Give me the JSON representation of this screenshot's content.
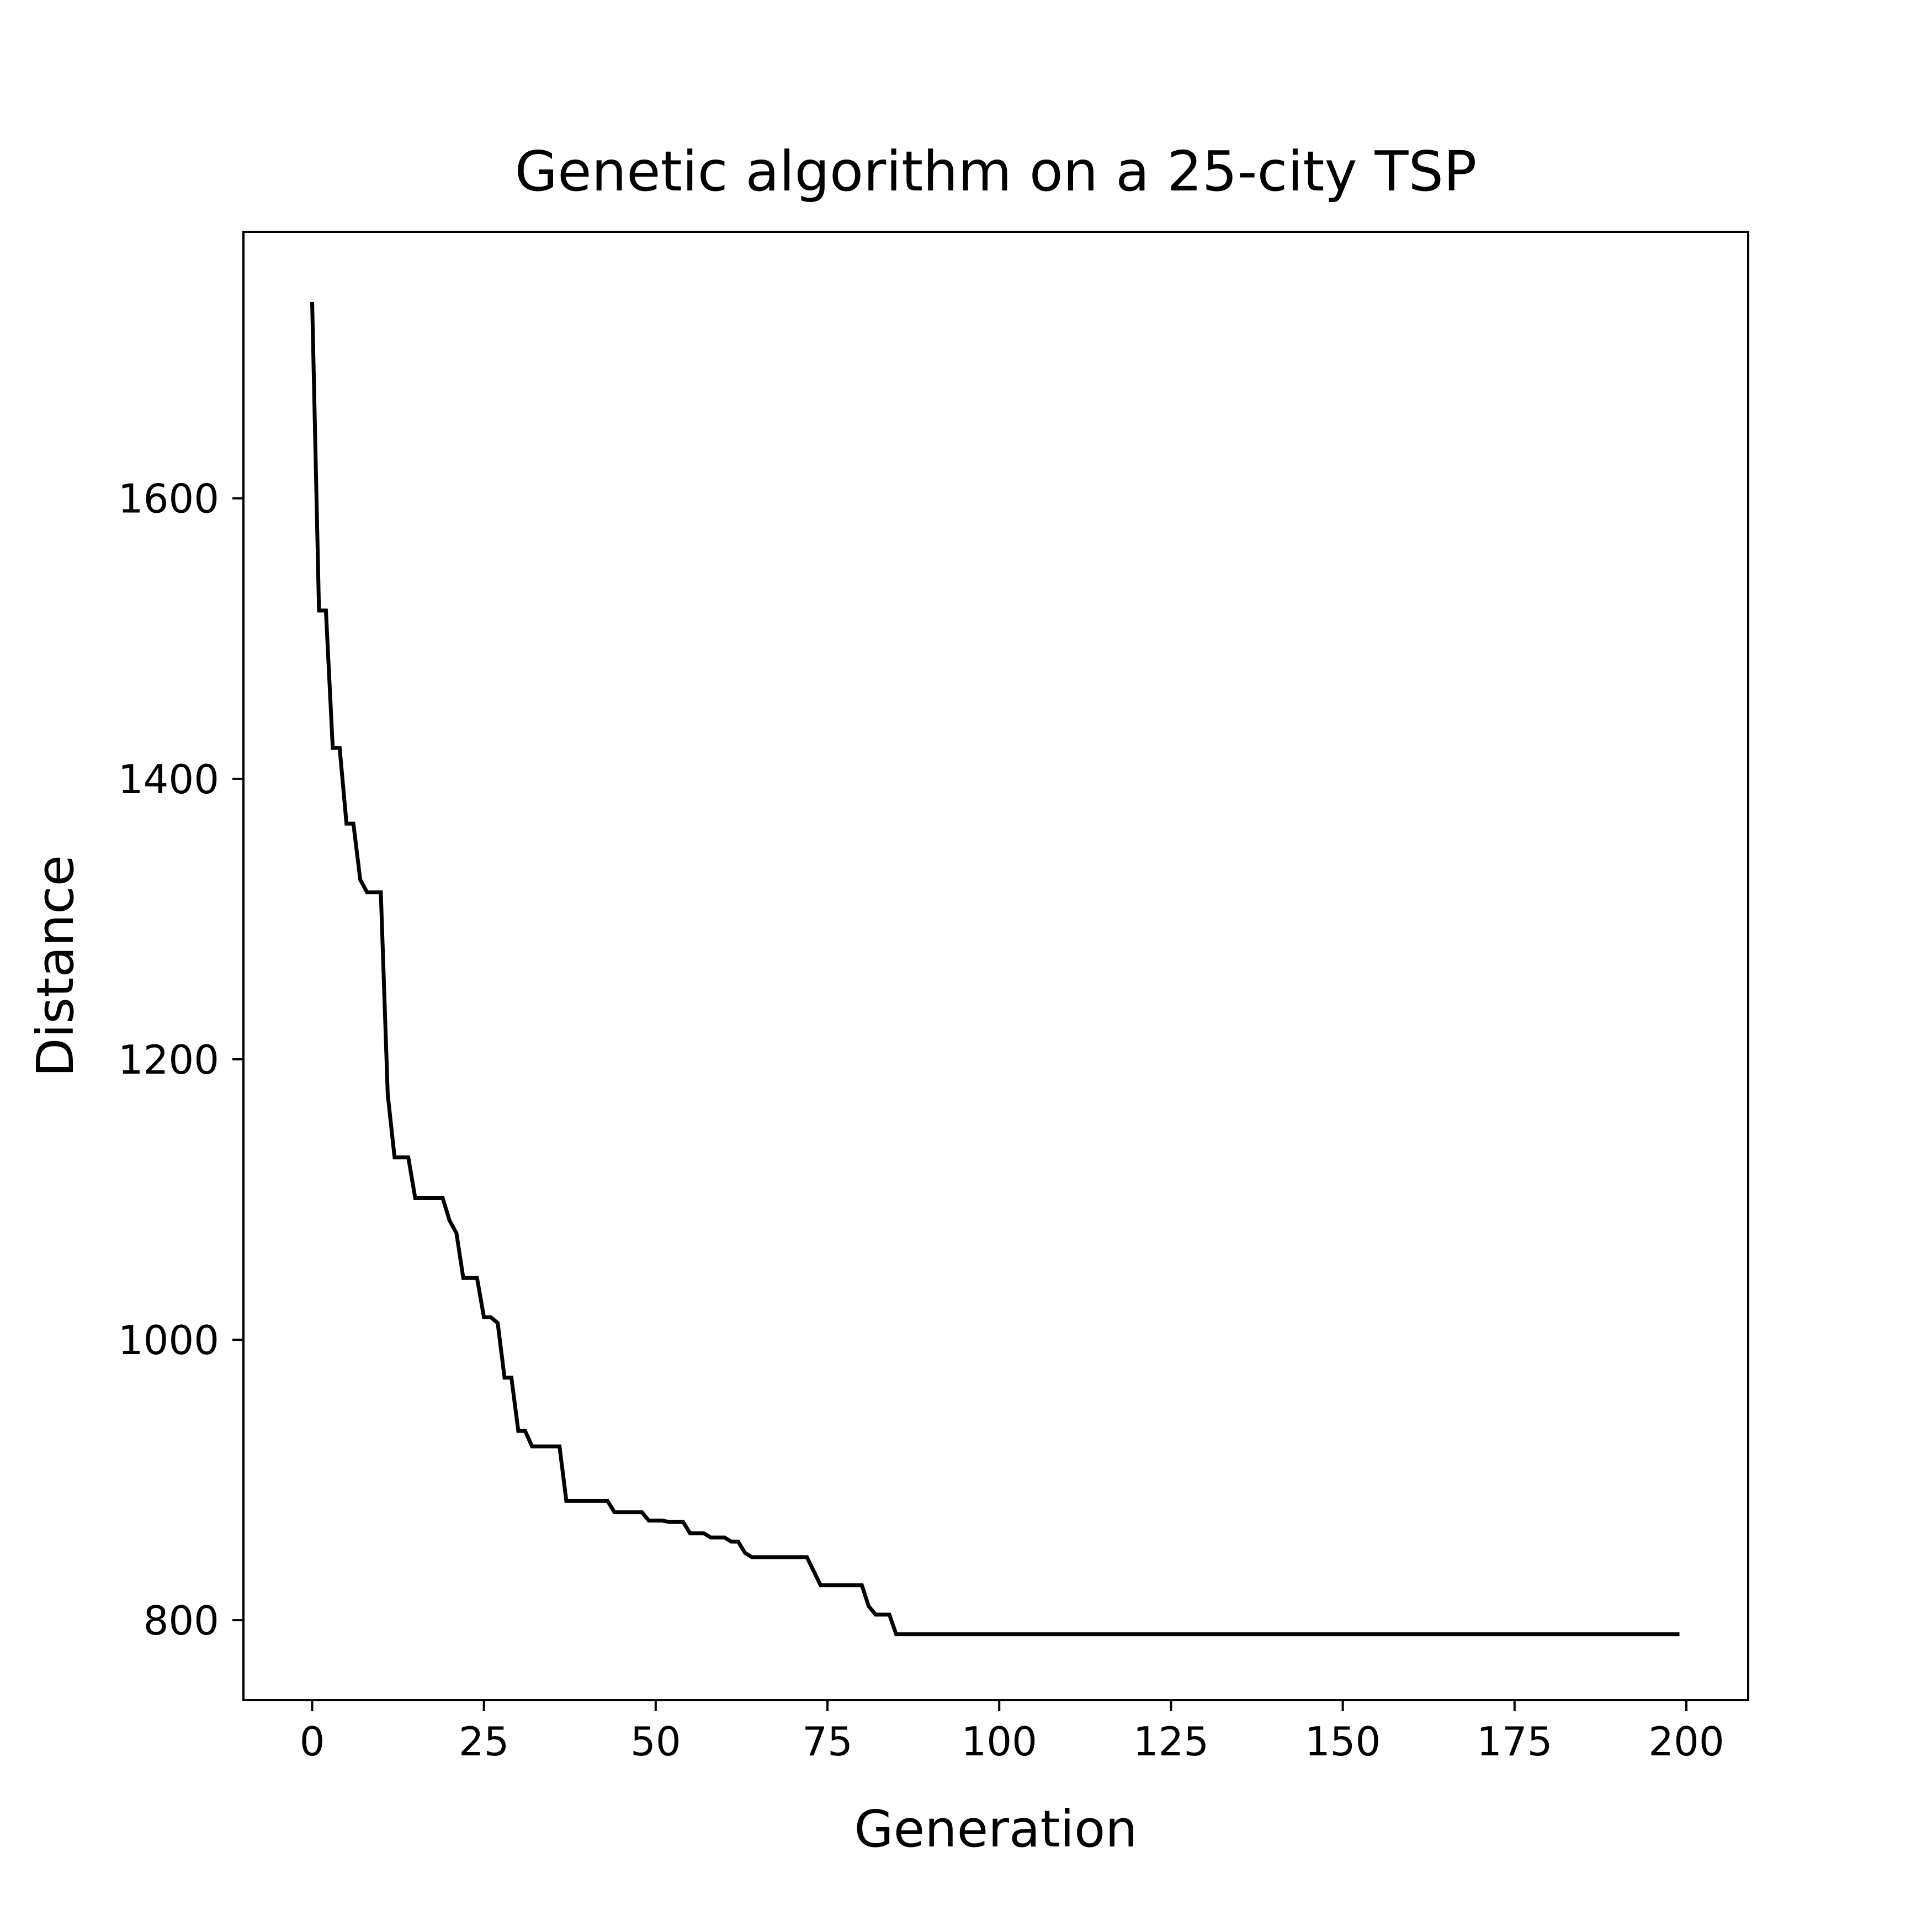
{
  "chart_data": {
    "type": "line",
    "title": "Genetic algorithm on a 25-city TSP",
    "xlabel": "Generation",
    "ylabel": "Distance",
    "xlim": [
      -10,
      209
    ],
    "ylim": [
      743,
      1790
    ],
    "xticks": [
      0,
      25,
      50,
      75,
      100,
      125,
      150,
      175,
      200
    ],
    "yticks": [
      800,
      1000,
      1200,
      1400,
      1600
    ],
    "grid": false,
    "line_color": "#000000",
    "series": [
      {
        "x": [
          0,
          1,
          2,
          3,
          4,
          5,
          6,
          7,
          8,
          9,
          10,
          11,
          12,
          13,
          14,
          15,
          16,
          17,
          18,
          19,
          20,
          21,
          22,
          23,
          24,
          25,
          26,
          27,
          28,
          29,
          30,
          31,
          32,
          33,
          34,
          35,
          36,
          37,
          38,
          39,
          40,
          41,
          42,
          43,
          44,
          45,
          46,
          47,
          48,
          49,
          50,
          51,
          52,
          53,
          54,
          55,
          56,
          57,
          58,
          59,
          60,
          61,
          62,
          63,
          64,
          65,
          66,
          67,
          68,
          69,
          70,
          71,
          72,
          73,
          74,
          75,
          76,
          77,
          78,
          79,
          80,
          81,
          82,
          83,
          84,
          85,
          199
        ],
        "values": [
          1740,
          1520,
          1520,
          1422,
          1422,
          1368,
          1368,
          1328,
          1319,
          1319,
          1319,
          1175,
          1130,
          1130,
          1130,
          1101,
          1101,
          1101,
          1101,
          1101,
          1085,
          1076,
          1044,
          1044,
          1044,
          1016,
          1016,
          1012,
          973,
          973,
          935,
          935,
          924,
          924,
          924,
          924,
          924,
          885,
          885,
          885,
          885,
          885,
          885,
          885,
          877,
          877,
          877,
          877,
          877,
          871,
          871,
          871,
          870,
          870,
          870,
          862,
          862,
          862,
          859,
          859,
          859,
          856,
          856,
          848,
          845,
          845,
          845,
          845,
          845,
          845,
          845,
          845,
          845,
          835,
          825,
          825,
          825,
          825,
          825,
          825,
          825,
          810,
          804,
          804,
          804,
          790,
          790
        ]
      }
    ]
  }
}
